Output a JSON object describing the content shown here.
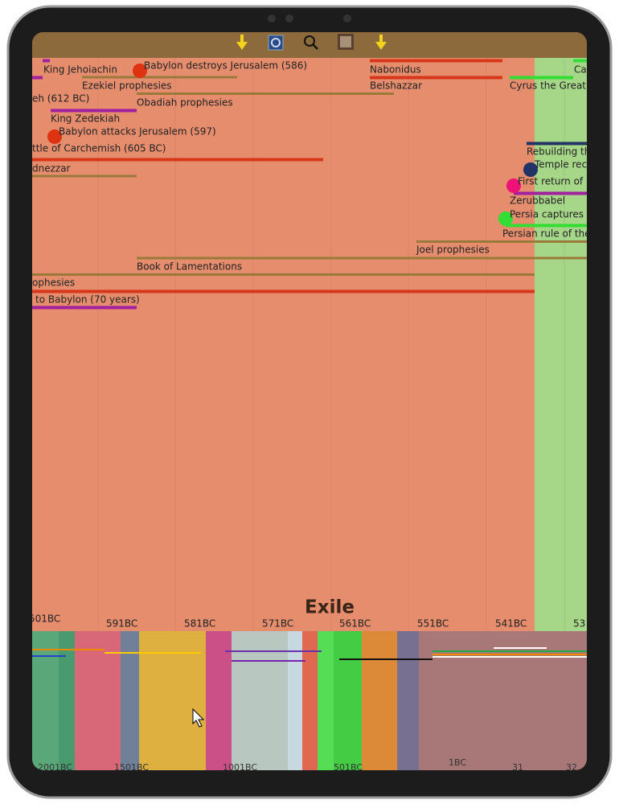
{
  "events": [
    "King Jehoiachin",
    "Babylon destroys Jerusalem (586)",
    "Ezekiel prophesies",
    "Nabonidus",
    "Belshazzar",
    "Ca",
    "Cyrus the Great",
    "Obadiah prophesies",
    "eh (612 BC)",
    "King Zedekiah",
    "Babylon attacks Jerusalem (597)",
    "ttle of Carchemish (605 BC)",
    "dnezzar",
    "Rebuilding th",
    "Temple rec",
    "First return of",
    "Zerubbabel",
    "Persia captures",
    "Persian rule of the",
    "Joel prophesies",
    "Book of Lamentations",
    "ophesies",
    "to Babylon (70 years)"
  ],
  "era_title": "Exile",
  "timescale": [
    "501BC",
    "591BC",
    "581BC",
    "571BC",
    "561BC",
    "551BC",
    "541BC",
    "53"
  ],
  "overview_scale": [
    "2001BC",
    "1501BC",
    "1001BC",
    "501BC",
    "1BC",
    "31",
    "32"
  ]
}
